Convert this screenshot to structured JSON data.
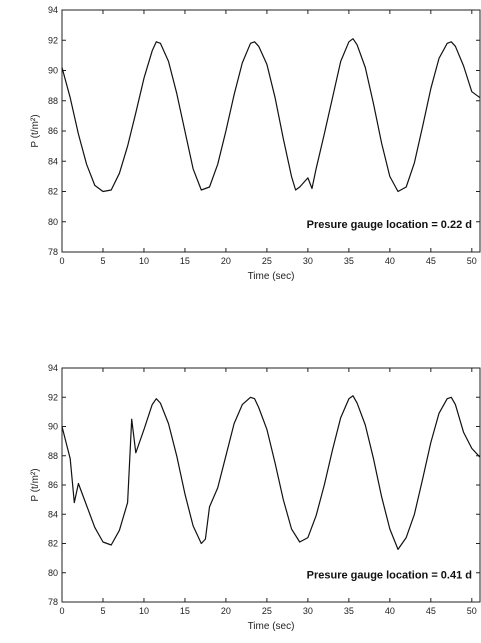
{
  "chart_data": [
    {
      "type": "line",
      "xlabel": "Time (sec)",
      "ylabel": "P (t/m²)",
      "xlim": [
        0,
        51
      ],
      "ylim": [
        78,
        94
      ],
      "xticks": [
        0,
        5,
        10,
        15,
        20,
        25,
        30,
        35,
        40,
        45,
        50
      ],
      "yticks": [
        78,
        80,
        82,
        84,
        86,
        88,
        90,
        92,
        94
      ],
      "grid": false,
      "annotation": "Presure gauge location = 0.22 d",
      "series": [
        {
          "x": [
            0,
            1,
            2,
            3,
            4,
            5,
            6,
            7,
            8,
            9,
            10,
            11,
            11.5,
            12,
            13,
            14,
            15,
            16,
            17,
            18,
            19,
            20,
            21,
            22,
            23,
            23.5,
            24,
            25,
            26,
            27,
            28,
            28.5,
            29,
            30,
            30.5,
            31,
            32,
            33,
            34,
            35,
            35.5,
            36,
            37,
            38,
            39,
            40,
            41,
            42,
            43,
            44,
            45,
            46,
            47,
            47.5,
            48,
            49,
            50,
            51
          ],
          "y": [
            90.2,
            88.2,
            85.8,
            83.8,
            82.4,
            82.0,
            82.1,
            83.2,
            85.0,
            87.2,
            89.5,
            91.3,
            91.9,
            91.8,
            90.6,
            88.5,
            86.0,
            83.5,
            82.1,
            82.3,
            83.8,
            86.0,
            88.4,
            90.5,
            91.8,
            91.9,
            91.6,
            90.4,
            88.2,
            85.5,
            83.0,
            82.1,
            82.3,
            82.9,
            82.2,
            83.5,
            85.8,
            88.2,
            90.6,
            91.9,
            92.1,
            91.7,
            90.2,
            87.8,
            85.2,
            83.0,
            82.0,
            82.3,
            83.9,
            86.3,
            88.8,
            90.8,
            91.8,
            91.9,
            91.6,
            90.3,
            88.6,
            88.2
          ]
        }
      ]
    },
    {
      "type": "line",
      "xlabel": "Time (sec)",
      "ylabel": "P (t/m²)",
      "xlim": [
        0,
        51
      ],
      "ylim": [
        78,
        94
      ],
      "xticks": [
        0,
        5,
        10,
        15,
        20,
        25,
        30,
        35,
        40,
        45,
        50
      ],
      "yticks": [
        78,
        80,
        82,
        84,
        86,
        88,
        90,
        92,
        94
      ],
      "grid": false,
      "annotation": "Presure gauge location = 0.41 d",
      "series": [
        {
          "x": [
            0,
            0.5,
            1,
            1.5,
            2,
            3,
            4,
            5,
            6,
            7,
            8,
            8.5,
            9,
            10,
            11,
            11.5,
            12,
            13,
            14,
            15,
            16,
            17,
            17.5,
            18,
            19,
            20,
            21,
            22,
            23,
            23.5,
            24,
            25,
            26,
            27,
            28,
            29,
            30,
            31,
            32,
            33,
            34,
            35,
            35.5,
            36,
            37,
            38,
            39,
            40,
            41,
            42,
            43,
            44,
            45,
            46,
            47,
            47.5,
            48,
            49,
            50,
            51
          ],
          "y": [
            90.0,
            88.9,
            87.8,
            84.8,
            86.1,
            84.6,
            83.1,
            82.1,
            81.9,
            82.9,
            84.8,
            90.5,
            88.2,
            89.8,
            91.5,
            91.9,
            91.6,
            90.2,
            88.0,
            85.4,
            83.2,
            82.0,
            82.3,
            84.5,
            85.8,
            88.0,
            90.2,
            91.5,
            92.0,
            91.9,
            91.3,
            89.8,
            87.5,
            85.0,
            83.0,
            82.1,
            82.4,
            83.9,
            86.0,
            88.4,
            90.6,
            91.9,
            92.1,
            91.6,
            90.1,
            87.8,
            85.2,
            83.0,
            81.6,
            82.4,
            84.0,
            86.4,
            88.9,
            90.9,
            91.9,
            92.0,
            91.5,
            89.6,
            88.5,
            87.9
          ]
        }
      ]
    }
  ]
}
